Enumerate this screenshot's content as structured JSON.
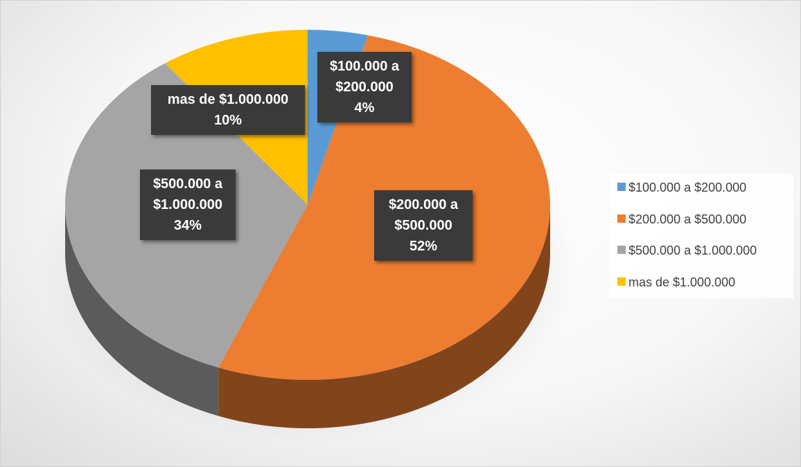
{
  "chart_data": {
    "type": "pie",
    "categories": [
      "$100.000 a $200.000",
      "$200.000 a $500.000",
      "$500.000 a $1.000.000",
      "mas de $1.000.000"
    ],
    "values": [
      4,
      52,
      34,
      10
    ],
    "value_labels": [
      "4%",
      "52%",
      "34%",
      "10%"
    ],
    "colors": [
      "#5b9bd5",
      "#ed7d31",
      "#a5a5a5",
      "#ffc000"
    ],
    "legend": "right"
  }
}
